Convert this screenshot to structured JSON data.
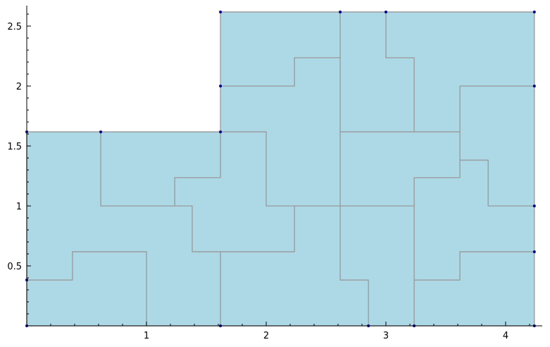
{
  "chart_data": {
    "type": "area",
    "title": "",
    "xlabel": "",
    "ylabel": "",
    "xlim": [
      0,
      4.24
    ],
    "ylim": [
      0,
      2.65
    ],
    "x_ticks": [
      {
        "value": 1,
        "label": "1"
      },
      {
        "value": 2,
        "label": "2"
      },
      {
        "value": 3,
        "label": "3"
      },
      {
        "value": 4,
        "label": "4"
      }
    ],
    "y_ticks": [
      {
        "value": 0.5,
        "label": "0.5"
      },
      {
        "value": 1,
        "label": "1"
      },
      {
        "value": 1.5,
        "label": "1.5"
      },
      {
        "value": 2,
        "label": "2"
      },
      {
        "value": 2.5,
        "label": "2.5"
      }
    ],
    "fill_color": "#add8e6",
    "line_color": "#999999",
    "point_color": "#00008b",
    "outline": [
      [
        0,
        0
      ],
      [
        4.24,
        0
      ],
      [
        4.24,
        2.618
      ],
      [
        1.618,
        2.618
      ],
      [
        1.618,
        1.618
      ],
      [
        0,
        1.618
      ]
    ],
    "segments": [
      [
        [
          0,
          0.382
        ],
        [
          0.382,
          0.382
        ],
        [
          0.382,
          0.618
        ],
        [
          1,
          0.618
        ],
        [
          1,
          0
        ]
      ],
      [
        [
          0.618,
          1.618
        ],
        [
          0.618,
          1
        ],
        [
          1.382,
          1
        ],
        [
          1.382,
          0.618
        ],
        [
          2.236,
          0.618
        ],
        [
          2.236,
          1
        ]
      ],
      [
        [
          1.236,
          1
        ],
        [
          1.236,
          1.236
        ],
        [
          1.618,
          1.236
        ],
        [
          1.618,
          1.618
        ]
      ],
      [
        [
          1.618,
          0
        ],
        [
          1.618,
          0.618
        ]
      ],
      [
        [
          1.618,
          1.618
        ],
        [
          2,
          1.618
        ],
        [
          2,
          1
        ],
        [
          3.236,
          1
        ],
        [
          3.236,
          0
        ]
      ],
      [
        [
          1.618,
          2
        ],
        [
          2.236,
          2
        ],
        [
          2.236,
          2.236
        ],
        [
          2.618,
          2.236
        ],
        [
          2.618,
          2.618
        ]
      ],
      [
        [
          2.618,
          2.236
        ],
        [
          2.618,
          0.382
        ],
        [
          2.854,
          0.382
        ],
        [
          2.854,
          0
        ]
      ],
      [
        [
          2.618,
          1.618
        ],
        [
          3.618,
          1.618
        ]
      ],
      [
        [
          3,
          2.618
        ],
        [
          3,
          2.236
        ],
        [
          3.236,
          2.236
        ],
        [
          3.236,
          1.618
        ]
      ],
      [
        [
          3.236,
          1
        ],
        [
          3.236,
          1.236
        ],
        [
          3.618,
          1.236
        ],
        [
          3.618,
          2
        ],
        [
          4.24,
          2
        ]
      ],
      [
        [
          3.618,
          1.382
        ],
        [
          3.854,
          1.382
        ],
        [
          3.854,
          1
        ],
        [
          4.24,
          1
        ]
      ],
      [
        [
          3.236,
          0.382
        ],
        [
          3.618,
          0.382
        ],
        [
          3.618,
          0.618
        ],
        [
          4.24,
          0.618
        ]
      ]
    ],
    "points": [
      [
        0,
        0
      ],
      [
        0,
        0.382
      ],
      [
        0,
        1.618
      ],
      [
        0.618,
        1.618
      ],
      [
        1.618,
        1.618
      ],
      [
        1.618,
        2
      ],
      [
        1.618,
        2.618
      ],
      [
        2.618,
        2.618
      ],
      [
        3,
        2.618
      ],
      [
        4.24,
        2.618
      ],
      [
        4.24,
        2
      ],
      [
        4.24,
        1
      ],
      [
        4.24,
        0.618
      ],
      [
        4.24,
        0
      ],
      [
        1.618,
        0
      ],
      [
        2.854,
        0
      ],
      [
        3.236,
        0
      ]
    ]
  }
}
